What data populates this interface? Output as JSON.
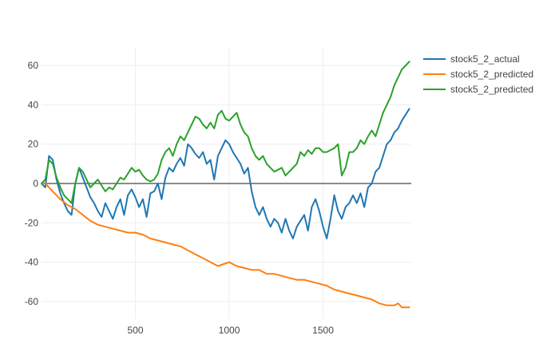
{
  "chart_data": {
    "type": "line",
    "title": "",
    "xlabel": "",
    "ylabel": "",
    "xlim": [
      0,
      1970
    ],
    "ylim": [
      -69,
      69
    ],
    "x_ticks": [
      500,
      1000,
      1500
    ],
    "y_ticks": [
      -60,
      -40,
      -20,
      0,
      20,
      40,
      60
    ],
    "grid": true,
    "legend_position": "top-right",
    "series": [
      {
        "name": "stock5_2_actual",
        "color": "#1f77b4",
        "x": [
          0,
          20,
          40,
          60,
          80,
          100,
          120,
          140,
          160,
          180,
          200,
          220,
          240,
          260,
          280,
          300,
          320,
          340,
          360,
          380,
          400,
          420,
          440,
          460,
          480,
          500,
          520,
          540,
          560,
          580,
          600,
          620,
          640,
          660,
          680,
          700,
          720,
          740,
          760,
          780,
          800,
          820,
          840,
          860,
          880,
          900,
          920,
          940,
          960,
          980,
          1000,
          1020,
          1040,
          1060,
          1080,
          1100,
          1120,
          1140,
          1160,
          1180,
          1200,
          1220,
          1240,
          1260,
          1280,
          1300,
          1320,
          1340,
          1360,
          1380,
          1400,
          1420,
          1440,
          1460,
          1480,
          1500,
          1520,
          1540,
          1560,
          1580,
          1600,
          1620,
          1640,
          1660,
          1680,
          1700,
          1720,
          1740,
          1760,
          1780,
          1800,
          1820,
          1840,
          1860,
          1880,
          1900,
          1920,
          1940,
          1960
        ],
        "y": [
          0,
          -2,
          14,
          12,
          2,
          -5,
          -10,
          -14,
          -16,
          0,
          8,
          3,
          -2,
          -7,
          -10,
          -14,
          -17,
          -10,
          -14,
          -18,
          -12,
          -8,
          -16,
          -6,
          -3,
          -7,
          -12,
          -8,
          -17,
          -5,
          -4,
          0,
          -8,
          3,
          8,
          6,
          10,
          13,
          9,
          20,
          18,
          15,
          13,
          16,
          10,
          12,
          2,
          14,
          18,
          22,
          20,
          16,
          13,
          10,
          5,
          8,
          -4,
          -12,
          -16,
          -12,
          -18,
          -22,
          -18,
          -20,
          -25,
          -18,
          -24,
          -28,
          -22,
          -19,
          -16,
          -24,
          -12,
          -8,
          -14,
          -22,
          -28,
          -18,
          -6,
          -14,
          -18,
          -12,
          -10,
          -6,
          -10,
          -5,
          -12,
          -2,
          0,
          6,
          8,
          14,
          20,
          22,
          26,
          28,
          32,
          35,
          38
        ]
      },
      {
        "name": "stock5_2_predicted",
        "color": "#ff7f0e",
        "x": [
          0,
          20,
          60,
          100,
          140,
          180,
          220,
          260,
          300,
          340,
          380,
          420,
          460,
          500,
          540,
          580,
          620,
          660,
          700,
          740,
          780,
          820,
          860,
          900,
          940,
          970,
          1000,
          1040,
          1080,
          1120,
          1160,
          1200,
          1240,
          1280,
          1320,
          1360,
          1400,
          1440,
          1480,
          1520,
          1560,
          1600,
          1640,
          1680,
          1720,
          1760,
          1800,
          1840,
          1880,
          1900,
          1920,
          1940,
          1960
        ],
        "y": [
          0,
          0,
          -4,
          -8,
          -11,
          -13,
          -16,
          -19,
          -21,
          -22,
          -23,
          -24,
          -25,
          -25,
          -26,
          -28,
          -29,
          -30,
          -31,
          -32,
          -34,
          -36,
          -38,
          -40,
          -42,
          -41,
          -40,
          -42,
          -43,
          -44,
          -44,
          -46,
          -46,
          -47,
          -48,
          -49,
          -49,
          -50,
          -51,
          -52,
          -54,
          -55,
          -56,
          -57,
          -58,
          -59,
          -61,
          -62,
          -62,
          -61,
          -63,
          -63,
          -63
        ]
      },
      {
        "name": "stock5_2_predicted",
        "color": "#2ca02c",
        "x": [
          0,
          20,
          40,
          60,
          80,
          100,
          120,
          140,
          160,
          180,
          200,
          220,
          240,
          260,
          280,
          300,
          320,
          340,
          360,
          380,
          400,
          420,
          440,
          460,
          480,
          500,
          520,
          540,
          560,
          580,
          600,
          620,
          640,
          660,
          680,
          700,
          720,
          740,
          760,
          780,
          800,
          820,
          840,
          860,
          880,
          900,
          920,
          940,
          960,
          980,
          1000,
          1020,
          1040,
          1060,
          1080,
          1100,
          1120,
          1140,
          1160,
          1180,
          1200,
          1220,
          1240,
          1260,
          1280,
          1300,
          1320,
          1340,
          1360,
          1380,
          1400,
          1420,
          1440,
          1460,
          1480,
          1500,
          1520,
          1540,
          1560,
          1580,
          1600,
          1620,
          1640,
          1660,
          1680,
          1700,
          1720,
          1740,
          1760,
          1780,
          1800,
          1820,
          1840,
          1860,
          1880,
          1900,
          1920,
          1940,
          1960
        ],
        "y": [
          0,
          2,
          12,
          10,
          3,
          -2,
          -6,
          -8,
          -10,
          0,
          8,
          6,
          2,
          -2,
          0,
          2,
          -1,
          -4,
          -2,
          -3,
          0,
          3,
          2,
          5,
          8,
          6,
          7,
          4,
          2,
          1,
          2,
          5,
          12,
          16,
          18,
          14,
          20,
          24,
          22,
          26,
          30,
          34,
          33,
          30,
          28,
          31,
          28,
          35,
          37,
          33,
          32,
          34,
          36,
          30,
          26,
          24,
          18,
          14,
          12,
          14,
          10,
          8,
          6,
          7,
          8,
          4,
          6,
          8,
          10,
          16,
          14,
          17,
          15,
          18,
          18,
          16,
          16,
          17,
          18,
          20,
          4,
          8,
          16,
          16,
          18,
          22,
          20,
          24,
          27,
          24,
          30,
          36,
          40,
          44,
          50,
          54,
          58,
          60,
          62
        ]
      }
    ]
  }
}
